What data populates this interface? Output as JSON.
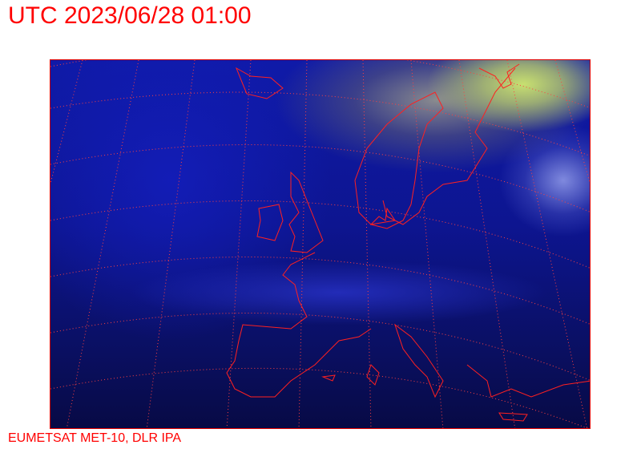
{
  "title": "UTC 2023/06/28 01:00",
  "credit": "EUMETSAT MET-10, DLR IPA",
  "colors": {
    "text": "#ff0000",
    "coastline": "#ff2020",
    "graticule": "#ff4040"
  },
  "map": {
    "product": "satellite-imagery",
    "region": "Europe"
  }
}
